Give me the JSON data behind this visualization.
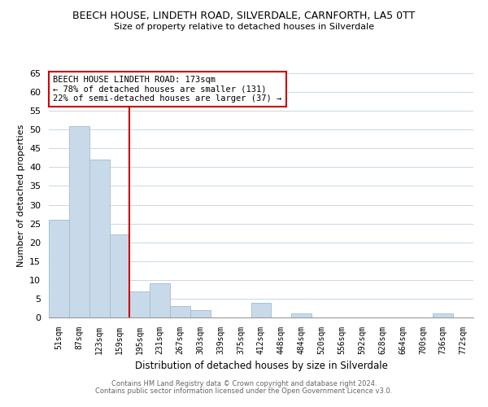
{
  "title": "BEECH HOUSE, LINDETH ROAD, SILVERDALE, CARNFORTH, LA5 0TT",
  "subtitle": "Size of property relative to detached houses in Silverdale",
  "xlabel": "Distribution of detached houses by size in Silverdale",
  "ylabel": "Number of detached properties",
  "bar_color": "#c8daea",
  "bar_edgecolor": "#a0bcd0",
  "categories": [
    "51sqm",
    "87sqm",
    "123sqm",
    "159sqm",
    "195sqm",
    "231sqm",
    "267sqm",
    "303sqm",
    "339sqm",
    "375sqm",
    "412sqm",
    "448sqm",
    "484sqm",
    "520sqm",
    "556sqm",
    "592sqm",
    "628sqm",
    "664sqm",
    "700sqm",
    "736sqm",
    "772sqm"
  ],
  "values": [
    26,
    51,
    42,
    22,
    7,
    9,
    3,
    2,
    0,
    0,
    4,
    0,
    1,
    0,
    0,
    0,
    0,
    0,
    0,
    1,
    0
  ],
  "ylim": [
    0,
    65
  ],
  "yticks": [
    0,
    5,
    10,
    15,
    20,
    25,
    30,
    35,
    40,
    45,
    50,
    55,
    60,
    65
  ],
  "vline_color": "#cc0000",
  "annotation_title": "BEECH HOUSE LINDETH ROAD: 173sqm",
  "annotation_line1": "← 78% of detached houses are smaller (131)",
  "annotation_line2": "22% of semi-detached houses are larger (37) →",
  "annotation_box_color": "#ffffff",
  "annotation_box_edgecolor": "#cc0000",
  "footer1": "Contains HM Land Registry data © Crown copyright and database right 2024.",
  "footer2": "Contains public sector information licensed under the Open Government Licence v3.0.",
  "background_color": "#ffffff",
  "grid_color": "#c8d8e8"
}
